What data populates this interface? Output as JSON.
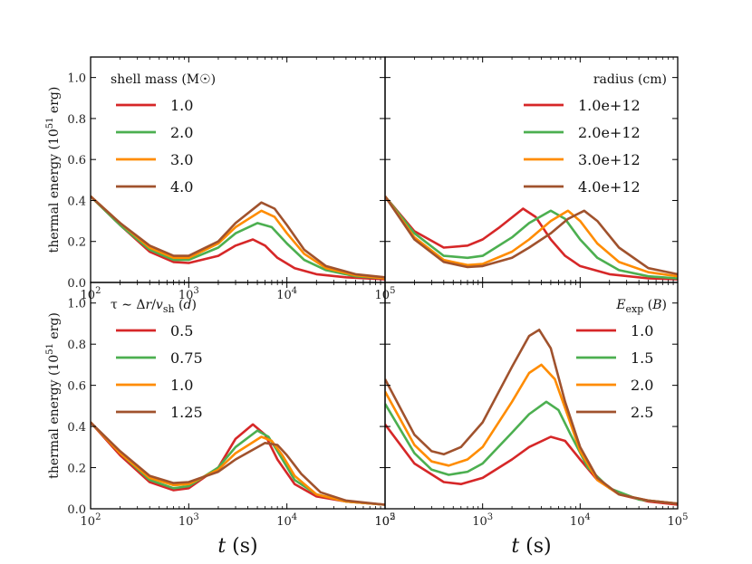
{
  "chart_data": [
    {
      "type": "line",
      "panel": "top-left",
      "legend_title": "shell mass (M☉)",
      "legend_placement": "top-left",
      "xscale": "log",
      "xlim": [
        100,
        100000
      ],
      "ylim": [
        0.0,
        1.1
      ],
      "ylabel": "thermal energy (10⁵¹ erg)",
      "xlabel": "",
      "yticks": [
        "0.0",
        "0.2",
        "0.4",
        "0.6",
        "0.8",
        "1.0"
      ],
      "xticks": [
        "10²",
        "10³",
        "10⁴",
        "10⁵"
      ],
      "series": [
        {
          "name": "1.0",
          "color": "#d62728",
          "x": [
            100,
            200,
            400,
            700,
            1000,
            2000,
            3000,
            4500,
            6000,
            8000,
            12000,
            20000,
            40000,
            100000
          ],
          "y": [
            0.42,
            0.28,
            0.15,
            0.1,
            0.095,
            0.13,
            0.18,
            0.21,
            0.18,
            0.12,
            0.07,
            0.04,
            0.025,
            0.015
          ]
        },
        {
          "name": "2.0",
          "color": "#4caf50",
          "x": [
            100,
            200,
            400,
            700,
            1000,
            2000,
            3000,
            5000,
            7000,
            10000,
            15000,
            25000,
            50000,
            100000
          ],
          "y": [
            0.42,
            0.28,
            0.16,
            0.11,
            0.11,
            0.17,
            0.24,
            0.29,
            0.27,
            0.19,
            0.11,
            0.06,
            0.03,
            0.02
          ]
        },
        {
          "name": "3.0",
          "color": "#ff8c00",
          "x": [
            100,
            200,
            400,
            700,
            1000,
            2000,
            3000,
            5500,
            7500,
            10000,
            15000,
            25000,
            50000,
            100000
          ],
          "y": [
            0.42,
            0.29,
            0.17,
            0.12,
            0.12,
            0.19,
            0.27,
            0.35,
            0.32,
            0.24,
            0.14,
            0.07,
            0.035,
            0.02
          ]
        },
        {
          "name": "4.0",
          "color": "#a0522d",
          "x": [
            100,
            200,
            400,
            700,
            1000,
            2000,
            3000,
            5500,
            7500,
            10000,
            15000,
            25000,
            50000,
            100000
          ],
          "y": [
            0.42,
            0.29,
            0.18,
            0.13,
            0.13,
            0.2,
            0.29,
            0.39,
            0.36,
            0.28,
            0.16,
            0.08,
            0.04,
            0.025
          ]
        }
      ]
    },
    {
      "type": "line",
      "panel": "top-right",
      "legend_title": "radius (cm)",
      "legend_placement": "top-right",
      "xscale": "log",
      "xlim": [
        100,
        100000
      ],
      "ylim": [
        0.0,
        1.1
      ],
      "ylabel": "",
      "xlabel": "",
      "yticks": [],
      "xticks": [],
      "series": [
        {
          "name": "1.0e+12",
          "color": "#d62728",
          "x": [
            100,
            200,
            400,
            700,
            1000,
            1500,
            2600,
            3500,
            5000,
            7000,
            10000,
            20000,
            50000,
            100000
          ],
          "y": [
            0.42,
            0.25,
            0.17,
            0.18,
            0.21,
            0.27,
            0.36,
            0.32,
            0.21,
            0.13,
            0.08,
            0.04,
            0.02,
            0.015
          ]
        },
        {
          "name": "2.0e+12",
          "color": "#4caf50",
          "x": [
            100,
            200,
            400,
            700,
            1000,
            2000,
            3000,
            5000,
            7000,
            10000,
            15000,
            25000,
            50000,
            100000
          ],
          "y": [
            0.42,
            0.24,
            0.13,
            0.12,
            0.13,
            0.22,
            0.29,
            0.35,
            0.31,
            0.21,
            0.12,
            0.06,
            0.03,
            0.02
          ]
        },
        {
          "name": "3.0e+12",
          "color": "#ff8c00",
          "x": [
            100,
            200,
            400,
            700,
            1000,
            2000,
            3000,
            5000,
            7500,
            10000,
            15000,
            25000,
            50000,
            100000
          ],
          "y": [
            0.42,
            0.22,
            0.11,
            0.085,
            0.09,
            0.15,
            0.21,
            0.3,
            0.35,
            0.3,
            0.19,
            0.1,
            0.05,
            0.03
          ]
        },
        {
          "name": "4.0e+12",
          "color": "#a0522d",
          "x": [
            100,
            200,
            400,
            700,
            1000,
            2000,
            3000,
            5000,
            7500,
            11000,
            15000,
            25000,
            50000,
            100000
          ],
          "y": [
            0.42,
            0.21,
            0.1,
            0.075,
            0.08,
            0.12,
            0.17,
            0.24,
            0.31,
            0.35,
            0.3,
            0.17,
            0.07,
            0.04
          ]
        }
      ]
    },
    {
      "type": "line",
      "panel": "bottom-left",
      "legend_title": "τ ∼ Δr/vsh (d)",
      "legend_placement": "top-left",
      "xscale": "log",
      "xlim": [
        100,
        100000
      ],
      "ylim": [
        0.0,
        1.1
      ],
      "ylabel": "thermal energy (10⁵¹ erg)",
      "xlabel": "t (s)",
      "yticks": [
        "0.0",
        "0.2",
        "0.4",
        "0.6",
        "0.8",
        "1.0"
      ],
      "xticks": [
        "10²",
        "10³",
        "10⁴",
        "10⁵"
      ],
      "series": [
        {
          "name": "0.5",
          "color": "#d62728",
          "x": [
            100,
            200,
            400,
            700,
            1000,
            2000,
            3000,
            4500,
            6000,
            8000,
            12000,
            20000,
            40000,
            100000
          ],
          "y": [
            0.42,
            0.26,
            0.13,
            0.09,
            0.1,
            0.2,
            0.34,
            0.41,
            0.36,
            0.24,
            0.12,
            0.06,
            0.035,
            0.02
          ]
        },
        {
          "name": "0.75",
          "color": "#4caf50",
          "x": [
            100,
            200,
            400,
            700,
            1000,
            2000,
            3000,
            5000,
            6500,
            8500,
            12000,
            20000,
            40000,
            100000
          ],
          "y": [
            0.42,
            0.27,
            0.14,
            0.1,
            0.11,
            0.2,
            0.3,
            0.38,
            0.35,
            0.26,
            0.14,
            0.07,
            0.035,
            0.02
          ]
        },
        {
          "name": "1.0",
          "color": "#ff8c00",
          "x": [
            100,
            200,
            400,
            700,
            1000,
            2000,
            3000,
            5500,
            7000,
            9000,
            12000,
            20000,
            40000,
            100000
          ],
          "y": [
            0.42,
            0.27,
            0.15,
            0.115,
            0.12,
            0.19,
            0.27,
            0.35,
            0.33,
            0.26,
            0.16,
            0.07,
            0.035,
            0.02
          ]
        },
        {
          "name": "1.25",
          "color": "#a0522d",
          "x": [
            100,
            200,
            400,
            700,
            1000,
            2000,
            3000,
            6000,
            8000,
            10000,
            14000,
            22000,
            40000,
            100000
          ],
          "y": [
            0.42,
            0.28,
            0.16,
            0.125,
            0.13,
            0.18,
            0.24,
            0.32,
            0.31,
            0.26,
            0.17,
            0.08,
            0.04,
            0.02
          ]
        }
      ]
    },
    {
      "type": "line",
      "panel": "bottom-right",
      "legend_title": "Eexp (B)",
      "legend_placement": "top-right",
      "xscale": "log",
      "xlim": [
        100,
        100000
      ],
      "ylim": [
        0.0,
        1.1
      ],
      "ylabel": "",
      "xlabel": "t (s)",
      "yticks": [],
      "xticks": [
        "10²",
        "10³",
        "10⁴",
        "10⁵"
      ],
      "series": [
        {
          "name": "1.0",
          "color": "#d62728",
          "x": [
            100,
            200,
            400,
            600,
            1000,
            2000,
            3000,
            5000,
            7000,
            10000,
            15000,
            25000,
            50000,
            100000
          ],
          "y": [
            0.41,
            0.22,
            0.13,
            0.12,
            0.15,
            0.24,
            0.3,
            0.35,
            0.33,
            0.24,
            0.14,
            0.07,
            0.035,
            0.02
          ]
        },
        {
          "name": "1.5",
          "color": "#4caf50",
          "x": [
            100,
            200,
            300,
            450,
            700,
            1000,
            2000,
            3000,
            4500,
            6000,
            8000,
            12000,
            20000,
            40000,
            100000
          ],
          "y": [
            0.51,
            0.27,
            0.19,
            0.165,
            0.18,
            0.22,
            0.37,
            0.46,
            0.52,
            0.48,
            0.36,
            0.2,
            0.1,
            0.045,
            0.025
          ]
        },
        {
          "name": "2.0",
          "color": "#ff8c00",
          "x": [
            100,
            200,
            300,
            450,
            700,
            1000,
            2000,
            3000,
            4000,
            5500,
            7500,
            10000,
            15000,
            25000,
            50000,
            100000
          ],
          "y": [
            0.57,
            0.31,
            0.23,
            0.21,
            0.24,
            0.3,
            0.52,
            0.66,
            0.7,
            0.63,
            0.45,
            0.28,
            0.14,
            0.07,
            0.04,
            0.025
          ]
        },
        {
          "name": "2.5",
          "color": "#a0522d",
          "x": [
            100,
            200,
            300,
            400,
            600,
            1000,
            2000,
            3000,
            3800,
            5000,
            7000,
            10000,
            15000,
            25000,
            50000,
            100000
          ],
          "y": [
            0.63,
            0.36,
            0.28,
            0.265,
            0.3,
            0.42,
            0.69,
            0.84,
            0.87,
            0.78,
            0.52,
            0.3,
            0.15,
            0.07,
            0.04,
            0.025
          ]
        }
      ]
    }
  ]
}
